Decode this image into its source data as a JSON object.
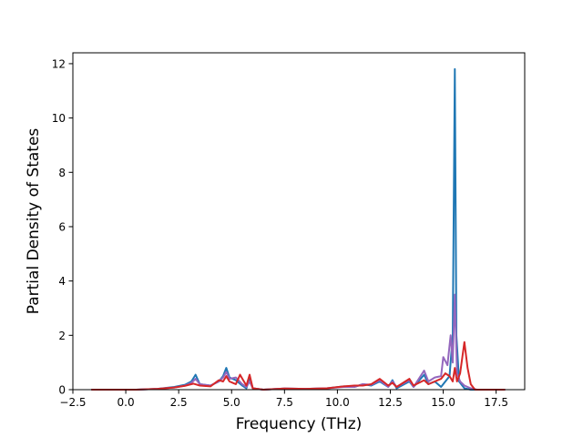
{
  "chart_data": {
    "type": "line",
    "xlabel": "Frequency (THz)",
    "ylabel": "Partial Density of States",
    "xlim": [
      -2.5,
      18.85
    ],
    "ylim": [
      0,
      12.4
    ],
    "xticks": [
      -2.5,
      0.0,
      2.5,
      5.0,
      7.5,
      10.0,
      12.5,
      15.0,
      17.5
    ],
    "xtick_labels": [
      "−2.5",
      "0.0",
      "2.5",
      "5.0",
      "7.5",
      "10.0",
      "12.5",
      "15.0",
      "17.5"
    ],
    "yticks": [
      0,
      2,
      4,
      6,
      8,
      10,
      12
    ],
    "ytick_labels": [
      "0",
      "2",
      "4",
      "6",
      "8",
      "10",
      "12"
    ],
    "grid": false,
    "legend": "none",
    "series": [
      {
        "color": "#1f77b4",
        "points": [
          [
            -1.6,
            0.0
          ],
          [
            0.5,
            0.0
          ],
          [
            1.5,
            0.03
          ],
          [
            2.3,
            0.1
          ],
          [
            2.8,
            0.18
          ],
          [
            3.1,
            0.3
          ],
          [
            3.3,
            0.55
          ],
          [
            3.5,
            0.2
          ],
          [
            4.0,
            0.15
          ],
          [
            4.4,
            0.3
          ],
          [
            4.6,
            0.5
          ],
          [
            4.75,
            0.8
          ],
          [
            4.9,
            0.45
          ],
          [
            5.2,
            0.35
          ],
          [
            5.5,
            0.15
          ],
          [
            5.7,
            0.05
          ],
          [
            5.85,
            0.45
          ],
          [
            6.0,
            0.05
          ],
          [
            6.5,
            0.0
          ],
          [
            7.5,
            0.04
          ],
          [
            8.5,
            0.03
          ],
          [
            9.5,
            0.05
          ],
          [
            10.3,
            0.12
          ],
          [
            10.8,
            0.1
          ],
          [
            11.2,
            0.2
          ],
          [
            11.6,
            0.15
          ],
          [
            12.0,
            0.3
          ],
          [
            12.4,
            0.1
          ],
          [
            12.6,
            0.35
          ],
          [
            12.8,
            0.05
          ],
          [
            13.4,
            0.3
          ],
          [
            13.6,
            0.1
          ],
          [
            14.1,
            0.55
          ],
          [
            14.3,
            0.2
          ],
          [
            14.6,
            0.3
          ],
          [
            14.9,
            0.1
          ],
          [
            15.1,
            0.3
          ],
          [
            15.3,
            0.5
          ],
          [
            15.45,
            2.0
          ],
          [
            15.55,
            11.8
          ],
          [
            15.62,
            2.0
          ],
          [
            15.75,
            0.3
          ],
          [
            16.0,
            0.05
          ],
          [
            16.3,
            0.0
          ],
          [
            17.9,
            0.0
          ]
        ]
      },
      {
        "color": "#9467bd",
        "points": [
          [
            -1.6,
            0.0
          ],
          [
            0.5,
            0.0
          ],
          [
            1.5,
            0.03
          ],
          [
            2.3,
            0.08
          ],
          [
            2.8,
            0.15
          ],
          [
            3.1,
            0.25
          ],
          [
            3.3,
            0.4
          ],
          [
            3.5,
            0.2
          ],
          [
            4.0,
            0.15
          ],
          [
            4.4,
            0.3
          ],
          [
            4.6,
            0.45
          ],
          [
            4.75,
            0.65
          ],
          [
            4.9,
            0.4
          ],
          [
            5.2,
            0.45
          ],
          [
            5.5,
            0.2
          ],
          [
            5.7,
            0.1
          ],
          [
            5.85,
            0.3
          ],
          [
            6.0,
            0.05
          ],
          [
            6.5,
            0.0
          ],
          [
            7.5,
            0.04
          ],
          [
            8.5,
            0.03
          ],
          [
            9.5,
            0.05
          ],
          [
            10.3,
            0.1
          ],
          [
            10.8,
            0.1
          ],
          [
            11.2,
            0.2
          ],
          [
            11.6,
            0.18
          ],
          [
            12.0,
            0.35
          ],
          [
            12.4,
            0.1
          ],
          [
            12.6,
            0.3
          ],
          [
            12.8,
            0.1
          ],
          [
            13.4,
            0.35
          ],
          [
            13.6,
            0.1
          ],
          [
            14.1,
            0.7
          ],
          [
            14.3,
            0.3
          ],
          [
            14.6,
            0.45
          ],
          [
            14.9,
            0.5
          ],
          [
            15.0,
            1.2
          ],
          [
            15.2,
            0.9
          ],
          [
            15.35,
            2.0
          ],
          [
            15.45,
            1.0
          ],
          [
            15.55,
            3.5
          ],
          [
            15.65,
            0.6
          ],
          [
            15.8,
            0.3
          ],
          [
            16.0,
            0.15
          ],
          [
            16.3,
            0.05
          ],
          [
            16.6,
            0.0
          ],
          [
            17.9,
            0.0
          ]
        ]
      },
      {
        "color": "#d62728",
        "points": [
          [
            -1.6,
            0.0
          ],
          [
            0.5,
            0.0
          ],
          [
            1.5,
            0.03
          ],
          [
            2.3,
            0.08
          ],
          [
            2.8,
            0.14
          ],
          [
            3.2,
            0.22
          ],
          [
            3.5,
            0.15
          ],
          [
            4.0,
            0.12
          ],
          [
            4.4,
            0.35
          ],
          [
            4.6,
            0.3
          ],
          [
            4.75,
            0.5
          ],
          [
            4.9,
            0.3
          ],
          [
            5.2,
            0.2
          ],
          [
            5.4,
            0.55
          ],
          [
            5.55,
            0.35
          ],
          [
            5.7,
            0.15
          ],
          [
            5.85,
            0.55
          ],
          [
            6.0,
            0.05
          ],
          [
            6.5,
            0.0
          ],
          [
            7.5,
            0.04
          ],
          [
            8.5,
            0.03
          ],
          [
            9.5,
            0.05
          ],
          [
            10.3,
            0.12
          ],
          [
            10.8,
            0.15
          ],
          [
            11.2,
            0.15
          ],
          [
            11.6,
            0.2
          ],
          [
            12.0,
            0.4
          ],
          [
            12.4,
            0.15
          ],
          [
            12.6,
            0.25
          ],
          [
            12.8,
            0.1
          ],
          [
            13.4,
            0.4
          ],
          [
            13.6,
            0.15
          ],
          [
            14.1,
            0.35
          ],
          [
            14.3,
            0.2
          ],
          [
            14.6,
            0.3
          ],
          [
            14.9,
            0.4
          ],
          [
            15.1,
            0.6
          ],
          [
            15.3,
            0.5
          ],
          [
            15.45,
            0.3
          ],
          [
            15.55,
            0.8
          ],
          [
            15.65,
            0.3
          ],
          [
            15.8,
            0.6
          ],
          [
            16.0,
            1.75
          ],
          [
            16.15,
            0.8
          ],
          [
            16.3,
            0.2
          ],
          [
            16.5,
            0.0
          ],
          [
            17.9,
            0.0
          ]
        ]
      }
    ]
  }
}
